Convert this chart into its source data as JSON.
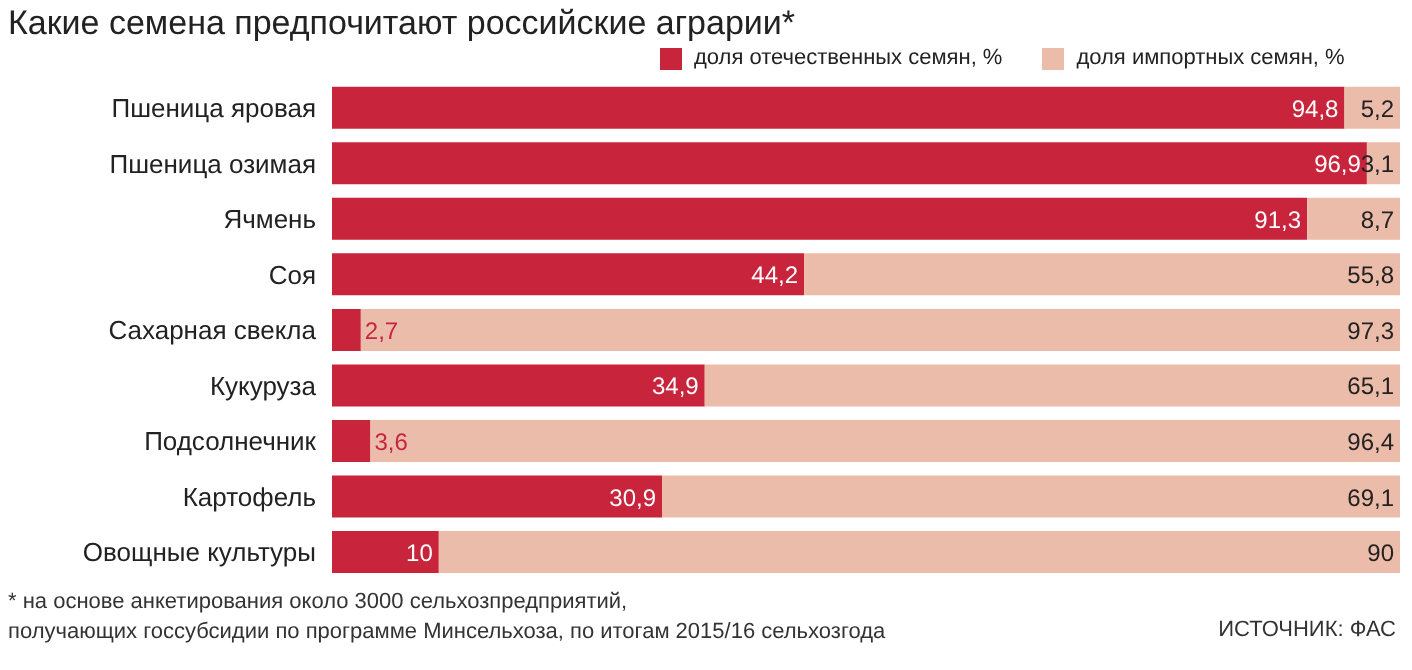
{
  "chart_data": {
    "type": "bar",
    "orientation": "horizontal",
    "stacked": true,
    "title": "Какие семена предпочитают российские аграрии*",
    "categories": [
      "Пшеница яровая",
      "Пшеница озимая",
      "Ячмень",
      "Соя",
      "Сахарная свекла",
      "Кукуруза",
      "Подсолнечник",
      "Картофель",
      "Овощные культуры"
    ],
    "series": [
      {
        "name": "доля отечественных семян, %",
        "color": "#c8243c",
        "values": [
          94.8,
          96.9,
          91.3,
          44.2,
          2.7,
          34.9,
          3.6,
          30.9,
          10
        ],
        "value_labels": [
          "94,8",
          "96,9",
          "91,3",
          "44,2",
          "2,7",
          "34,9",
          "3,6",
          "30,9",
          "10"
        ]
      },
      {
        "name": "доля импортных семян, %",
        "color": "#ecbcab",
        "values": [
          5.2,
          3.1,
          8.7,
          55.8,
          97.3,
          65.1,
          96.4,
          69.1,
          90
        ],
        "value_labels": [
          "5,2",
          "3,1",
          "8,7",
          "55,8",
          "97,3",
          "65,1",
          "96,4",
          "69,1",
          "90"
        ]
      }
    ],
    "xlim": [
      0,
      100
    ],
    "tick_labels": "y",
    "legend": "top",
    "grid": false,
    "annotations": [
      "* на основе анкетирования около 3000 сельхозпредприятий,",
      "получающих госсубсидии по программе Минсельхоза, по итогам 2015/16 сельхозгода",
      "ИСТОЧНИК: ФАС"
    ]
  }
}
